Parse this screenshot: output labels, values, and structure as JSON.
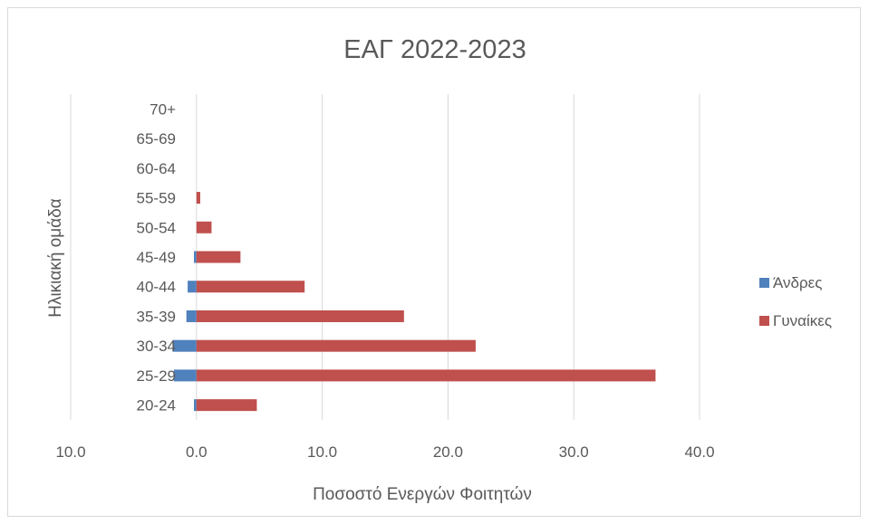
{
  "chart_data": {
    "type": "bar",
    "orientation": "horizontal",
    "title": "ΕΑΓ 2022-2023",
    "xlabel": "Ποσοστό Ενεργών Φοιτητών",
    "ylabel": "Ηλικιακή ομάδα",
    "categories": [
      "20-24",
      "25-29",
      "30-34",
      "35-39",
      "40-44",
      "45-49",
      "50-54",
      "55-59",
      "60-64",
      "65-69",
      "70+"
    ],
    "series": [
      {
        "name": "Άνδρες",
        "color": "#4f81bd",
        "values": [
          -0.2,
          -1.8,
          -1.9,
          -0.8,
          -0.7,
          -0.2,
          0.0,
          0.0,
          0.0,
          0.0,
          0.0
        ]
      },
      {
        "name": "Γυναίκες",
        "color": "#c0504d",
        "values": [
          4.8,
          36.5,
          22.2,
          16.5,
          8.6,
          3.5,
          1.2,
          0.3,
          0.0,
          0.0,
          0.0
        ]
      }
    ],
    "xlim": [
      -10,
      40
    ],
    "xticks": [
      -10,
      0,
      10,
      20,
      30,
      40
    ],
    "xtick_labels": [
      "10.0",
      "0.0",
      "10.0",
      "20.0",
      "30.0",
      "40.0"
    ],
    "grid": true,
    "legend_position": "right"
  }
}
